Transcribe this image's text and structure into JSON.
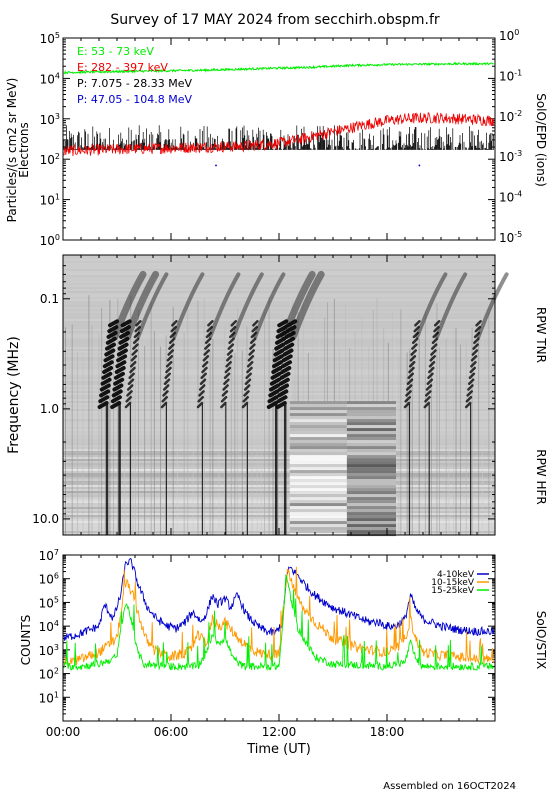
{
  "title": "Survey of 17 MAY 2024 from secchirh.obspm.fr",
  "footer": "Assembled on 16OCT2024",
  "chart_data": [
    {
      "type": "line",
      "panel": "SolO/EPD",
      "ylabel_left_line1": "Particles/(s cm2 sr MeV)",
      "ylabel_left_line2": "Electrons",
      "ylabel_right": "SolO/EPD (ions)",
      "yscale": "log",
      "ylim": [
        1,
        100000
      ],
      "yticks_left": [
        "10^0",
        "10^1",
        "10^2",
        "10^3",
        "10^4",
        "10^5"
      ],
      "ylim_right": [
        1e-05,
        1
      ],
      "yticks_right": [
        "10^-5",
        "10^-4",
        "10^-3",
        "10^-2",
        "10^-1",
        "10^0"
      ],
      "xlim_hours": [
        0,
        24
      ],
      "legend": [
        {
          "text": "E: 53 - 73 keV",
          "color": "#00ee00"
        },
        {
          "text": "E: 282 - 397 keV",
          "color": "#ee0000"
        },
        {
          "text": "P: 7.075 - 28.33 MeV",
          "color": "#000000"
        },
        {
          "text": "P: 47.05 - 104.8 MeV",
          "color": "#0000cc"
        }
      ],
      "series": [
        {
          "name": "E: 53 - 73 keV",
          "color": "#00ee00",
          "x": [
            0,
            2,
            4,
            6,
            8,
            10,
            12,
            14,
            16,
            18,
            20,
            22,
            24
          ],
          "y": [
            14000,
            14500,
            15000,
            15500,
            16000,
            17000,
            18000,
            19000,
            21000,
            22000,
            22500,
            23000,
            23000
          ]
        },
        {
          "name": "E: 282 - 397 keV",
          "color": "#ee0000",
          "x": [
            0,
            2,
            4,
            6,
            8,
            10,
            12,
            13,
            14,
            15,
            16,
            17,
            18,
            19,
            20,
            21,
            22,
            23,
            24
          ],
          "y": [
            160,
            170,
            180,
            190,
            200,
            210,
            250,
            300,
            380,
            480,
            600,
            750,
            900,
            1000,
            1050,
            1050,
            1000,
            950,
            900
          ]
        },
        {
          "name": "P: 7.075 - 28.33 MeV",
          "color": "#000000",
          "baseline": 170,
          "max": 700
        },
        {
          "name": "P: 47.05 - 104.8 MeV",
          "color": "#0000cc",
          "x": [
            8.5,
            19.8
          ],
          "y": [
            70,
            70
          ]
        }
      ]
    },
    {
      "type": "heatmap",
      "panel": "RPW spectrogram",
      "ylabel": "Frequency (MHz)",
      "yscale": "log",
      "ylim": [
        0.04,
        14
      ],
      "yticks": [
        "0.1",
        "1.0",
        "10.0"
      ],
      "label_upper": "RPW TNR",
      "label_lower": "RPW HFR",
      "xlim_hours": [
        0,
        24
      ],
      "bursts_hours": [
        3.0,
        3.7,
        4.3,
        6.3,
        8.3,
        9.6,
        10.8,
        12.4,
        12.9,
        19.8,
        20.9,
        23.2
      ],
      "data_gap_hours": [
        12.6,
        18.5
      ]
    },
    {
      "type": "line",
      "panel": "SolO/STIX",
      "ylabel": "COUNTS",
      "ylabel_right": "SolO/STIX",
      "yscale": "log",
      "ylim": [
        1,
        10000000
      ],
      "yticks": [
        "10^1",
        "10^2",
        "10^3",
        "10^4",
        "10^5",
        "10^6",
        "10^7"
      ],
      "xlim_hours": [
        0,
        24
      ],
      "xticks": [
        "00:00",
        "06:00",
        "12:00",
        "18:00"
      ],
      "xlabel": "Time (UT)",
      "legend": [
        {
          "text": "4-10keV",
          "color": "#0000cc"
        },
        {
          "text": "10-15keV",
          "color": "#ff9900"
        },
        {
          "text": "15-25keV",
          "color": "#00ee00"
        }
      ],
      "series": [
        {
          "name": "4-10keV",
          "color": "#0000cc",
          "x": [
            0,
            1,
            2,
            2.3,
            2.8,
            3.2,
            3.5,
            3.8,
            4.2,
            4.7,
            5.2,
            5.8,
            6.3,
            6.8,
            7.2,
            7.7,
            8.0,
            8.3,
            8.6,
            9.0,
            9.3,
            9.7,
            10.2,
            10.8,
            11.3,
            11.8,
            12.2,
            12.4,
            12.6,
            13.0,
            13.5,
            14.0,
            15.0,
            16.0,
            17.0,
            17.5,
            18.0,
            18.5,
            19.0,
            19.3,
            19.6,
            20.0,
            21.0,
            22.0,
            23.0,
            24.0
          ],
          "y": [
            3000,
            5000,
            10000,
            80000,
            20000,
            200000,
            5000000,
            5000000,
            500000,
            60000,
            20000,
            10000,
            8000,
            15000,
            40000,
            15000,
            40000,
            200000,
            80000,
            150000,
            60000,
            200000,
            30000,
            10000,
            6000,
            5000,
            15000,
            1000000,
            3000000,
            1500000,
            500000,
            200000,
            60000,
            30000,
            15000,
            15000,
            10000,
            10000,
            20000,
            200000,
            50000,
            20000,
            10000,
            7000,
            6000,
            6000
          ]
        },
        {
          "name": "10-15keV",
          "color": "#ff9900",
          "x": [
            0,
            1,
            2,
            2.5,
            3.0,
            3.3,
            3.5,
            3.8,
            4.2,
            4.6,
            5.0,
            6.0,
            7.0,
            7.5,
            8.0,
            8.3,
            8.7,
            9.0,
            9.5,
            10.0,
            10.5,
            11.0,
            12.0,
            12.3,
            12.5,
            12.8,
            13.3,
            14.0,
            15.0,
            16.0,
            17.0,
            18.0,
            18.5,
            19.0,
            19.3,
            19.6,
            20.0,
            21.0,
            22.0,
            23.0,
            24.0
          ],
          "y": [
            300,
            400,
            800,
            1500,
            3000,
            100000,
            700000,
            300000,
            30000,
            3000,
            1000,
            500,
            800,
            4000,
            2000,
            20000,
            10000,
            15000,
            5000,
            2000,
            1000,
            700,
            600,
            150000,
            2500000,
            400000,
            60000,
            15000,
            3000,
            1500,
            1000,
            800,
            1000,
            3000,
            20000,
            3000,
            800,
            600,
            500,
            400,
            400
          ]
        },
        {
          "name": "15-25keV",
          "color": "#00ee00",
          "x": [
            0,
            1,
            2,
            3.0,
            3.3,
            3.5,
            3.8,
            4.1,
            4.5,
            6.0,
            7.5,
            8.0,
            8.3,
            8.6,
            9.0,
            9.5,
            10.0,
            12.0,
            12.2,
            12.4,
            12.7,
            13.0,
            13.5,
            14.0,
            15.0,
            18.0,
            19.0,
            19.3,
            19.6,
            20.0,
            24.0
          ],
          "y": [
            200,
            200,
            250,
            500,
            20000,
            100000,
            20000,
            1000,
            250,
            200,
            200,
            800,
            5000,
            2000,
            3000,
            400,
            200,
            200,
            10000,
            1500000,
            100000,
            10000,
            2000,
            500,
            250,
            200,
            300,
            2000,
            400,
            200,
            200
          ]
        }
      ]
    }
  ]
}
